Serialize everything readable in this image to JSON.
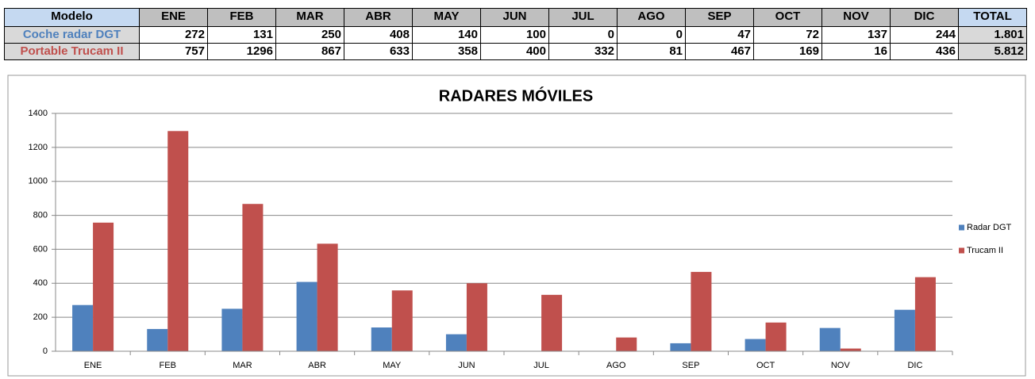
{
  "table": {
    "header": [
      "Modelo",
      "ENE",
      "FEB",
      "MAR",
      "ABR",
      "MAY",
      "JUN",
      "JUL",
      "AGO",
      "SEP",
      "OCT",
      "NOV",
      "DIC",
      "TOTAL"
    ],
    "rows": [
      [
        "Coche radar DGT",
        272,
        131,
        250,
        408,
        140,
        100,
        0,
        0,
        47,
        72,
        137,
        244,
        "1.801"
      ],
      [
        "Portable Trucam II",
        757,
        1296,
        867,
        633,
        358,
        400,
        332,
        81,
        467,
        169,
        16,
        436,
        "5.812"
      ]
    ]
  },
  "chart_data": {
    "type": "bar",
    "title": "RADARES MÓVILES",
    "categories": [
      "ENE",
      "FEB",
      "MAR",
      "ABR",
      "MAY",
      "JUN",
      "JUL",
      "AGO",
      "SEP",
      "OCT",
      "NOV",
      "DIC"
    ],
    "series": [
      {
        "name": "Radar DGT",
        "color": "#4f81bd",
        "values": [
          272,
          131,
          250,
          408,
          140,
          100,
          0,
          0,
          47,
          72,
          137,
          244
        ]
      },
      {
        "name": "Trucam II",
        "color": "#c0504d",
        "values": [
          757,
          1296,
          867,
          633,
          358,
          400,
          332,
          81,
          467,
          169,
          16,
          436
        ]
      }
    ],
    "ylim": [
      0,
      1400
    ],
    "yticks": [
      0,
      200,
      400,
      600,
      800,
      1000,
      1200,
      1400
    ],
    "grid": true,
    "legend": "right"
  }
}
